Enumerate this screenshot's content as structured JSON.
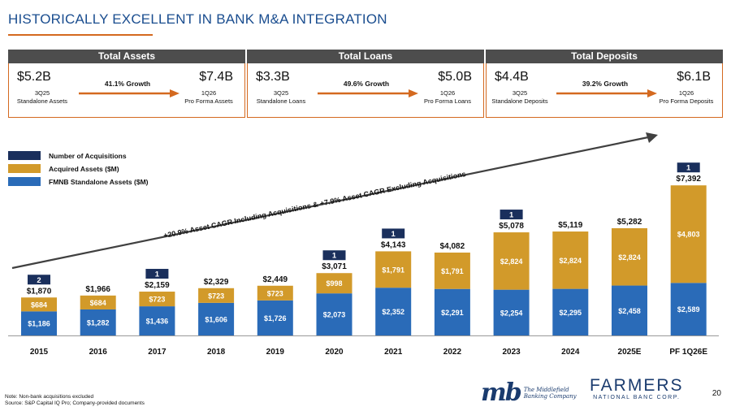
{
  "title": "HISTORICALLY EXCELLENT IN BANK M&A INTEGRATION",
  "metrics": [
    {
      "header": "Total Assets",
      "left_value": "$5.2B",
      "left_sub1": "3Q25",
      "left_sub2": "Standalone Assets",
      "growth": "41.1% Growth",
      "right_value": "$7.4B",
      "right_sub1": "1Q26",
      "right_sub2": "Pro Forma Assets"
    },
    {
      "header": "Total Loans",
      "left_value": "$3.3B",
      "left_sub1": "3Q25",
      "left_sub2": "Standalone Loans",
      "growth": "49.6% Growth",
      "right_value": "$5.0B",
      "right_sub1": "1Q26",
      "right_sub2": "Pro Forma Loans"
    },
    {
      "header": "Total Deposits",
      "left_value": "$4.4B",
      "left_sub1": "3Q25",
      "left_sub2": "Standalone Deposits",
      "growth": "39.2% Growth",
      "right_value": "$6.1B",
      "right_sub1": "1Q26",
      "right_sub2": "Pro Forma Deposits"
    }
  ],
  "legend": {
    "acquisitions": "Number of Acquisitions",
    "acquired": "Acquired Assets ($M)",
    "standalone": "FMNB Standalone Assets ($M)"
  },
  "colors": {
    "navy": "#1a2f5c",
    "gold": "#d29a2a",
    "blue": "#2a6bb8",
    "orange": "#d4691f"
  },
  "chart_data": {
    "type": "bar",
    "stacked": true,
    "categories": [
      "2015",
      "2016",
      "2017",
      "2018",
      "2019",
      "2020",
      "2021",
      "2022",
      "2023",
      "2024",
      "2025E",
      "PF 1Q26E"
    ],
    "series": [
      {
        "name": "FMNB Standalone Assets ($M)",
        "values": [
          1186,
          1282,
          1436,
          1606,
          1726,
          2073,
          2352,
          2291,
          2254,
          2295,
          2458,
          2589
        ],
        "labels": [
          "$1,186",
          "$1,282",
          "$1,436",
          "$1,606",
          "$1,726",
          "$2,073",
          "$2,352",
          "$2,291",
          "$2,254",
          "$2,295",
          "$2,458",
          "$2,589"
        ]
      },
      {
        "name": "Acquired Assets ($M)",
        "values": [
          684,
          684,
          723,
          723,
          723,
          998,
          1791,
          1791,
          2824,
          2824,
          2824,
          4803
        ],
        "labels": [
          "$684",
          "$684",
          "$723",
          "$723",
          "$723",
          "$998",
          "$1,791",
          "$1,791",
          "$2,824",
          "$2,824",
          "$2,824",
          "$4,803"
        ]
      }
    ],
    "totals": [
      1870,
      1966,
      2159,
      2329,
      2449,
      3071,
      4143,
      4082,
      5078,
      5119,
      5282,
      7392
    ],
    "total_labels": [
      "$1,870",
      "$1,966",
      "$2,159",
      "$2,329",
      "$2,449",
      "$3,071",
      "$4,143",
      "$4,082",
      "$5,078",
      "$5,119",
      "$5,282",
      "$7,392"
    ],
    "acquisitions": [
      "2",
      "",
      "1",
      "",
      "",
      "1",
      "1",
      "",
      "1",
      "",
      "",
      "1"
    ],
    "annotation": "+20.9% Asset CAGR Including Acquisitions & +7.9% Asset CAGR Excluding Acquisitions",
    "ylim": [
      0,
      8000
    ],
    "legend_position": "top-left"
  },
  "footnote": {
    "line1": "Note: Non-bank acquisitions excluded",
    "line2": "Source: S&P Capital IQ Pro; Company-provided documents"
  },
  "page_number": "20",
  "logos": {
    "mb_mark": "mb",
    "mb_line1": "The Middlefield",
    "mb_line2": "Banking Company",
    "farmers_main": "FARMERS",
    "farmers_sub": "NATIONAL BANC CORP."
  }
}
